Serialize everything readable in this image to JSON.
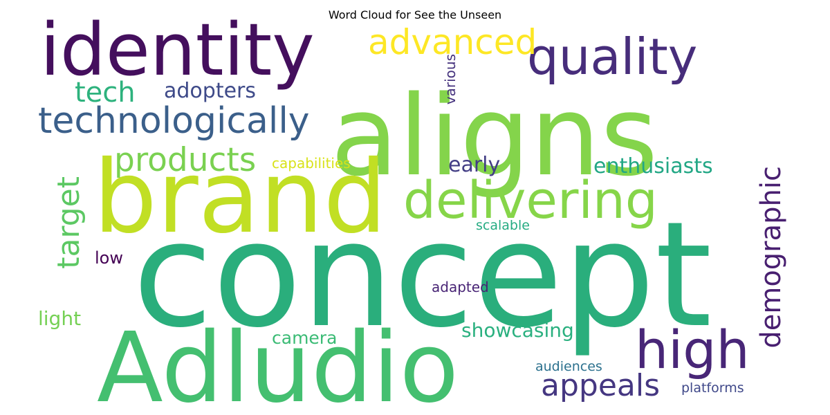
{
  "chart_data": {
    "type": "wordcloud",
    "title": "Word Cloud for See the Unseen",
    "words": [
      {
        "text": "concept",
        "color": "#2aae7c"
      },
      {
        "text": "aligns",
        "color": "#84d44b"
      },
      {
        "text": "brand",
        "color": "#c1df24"
      },
      {
        "text": "Adludio",
        "color": "#44bf70"
      },
      {
        "text": "identity",
        "color": "#440f5d"
      },
      {
        "text": "quality",
        "color": "#472d7b"
      },
      {
        "text": "delivering",
        "color": "#86d549"
      },
      {
        "text": "high",
        "color": "#482677"
      },
      {
        "text": "technologically",
        "color": "#3b5f8a"
      },
      {
        "text": "advanced",
        "color": "#fde725"
      },
      {
        "text": "appeals",
        "color": "#453781"
      },
      {
        "text": "demographic",
        "color": "#481f70"
      },
      {
        "text": "products",
        "color": "#7ad151"
      },
      {
        "text": "target",
        "color": "#5cc863"
      },
      {
        "text": "enthusiasts",
        "color": "#22a785"
      },
      {
        "text": "tech",
        "color": "#2db27d"
      },
      {
        "text": "adopters",
        "color": "#3e4a89"
      },
      {
        "text": "early",
        "color": "#433e85"
      },
      {
        "text": "showcasing",
        "color": "#2ab07f"
      },
      {
        "text": "light",
        "color": "#75d054"
      },
      {
        "text": "camera",
        "color": "#3bbb75"
      },
      {
        "text": "capabilities",
        "color": "#d8e219"
      },
      {
        "text": "low",
        "color": "#440154"
      },
      {
        "text": "scalable",
        "color": "#25ab82"
      },
      {
        "text": "adapted",
        "color": "#482475"
      },
      {
        "text": "audiences",
        "color": "#2c718e"
      },
      {
        "text": "platforms",
        "color": "#3f4889"
      },
      {
        "text": "various",
        "color": "#46337e"
      }
    ]
  }
}
